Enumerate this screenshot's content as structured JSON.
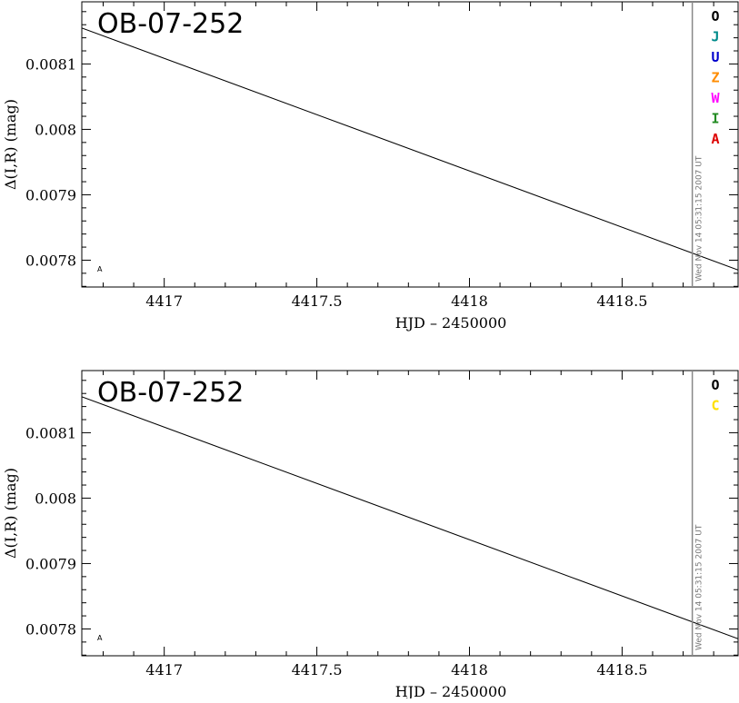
{
  "chart_data": [
    {
      "type": "line",
      "title": "OB-07-252",
      "xlabel": "HJD – 2450000",
      "ylabel": "Δ(I,R) (mag)",
      "xlim": [
        4416.73,
        4418.88
      ],
      "ylim": [
        0.007759,
        0.008195
      ],
      "x_ticks": [
        4417,
        4417.5,
        4418,
        4418.5
      ],
      "x_tick_labels": [
        "4417",
        "4417.5",
        "4418",
        "4418.5"
      ],
      "y_ticks": [
        0.0078,
        0.0079,
        0.008,
        0.0081
      ],
      "y_tick_labels": [
        "0.0078",
        "0.0079",
        "0.008",
        "0.0081"
      ],
      "series": [
        {
          "x": [
            4416.73,
            4418.88
          ],
          "y": [
            0.008155,
            0.007785
          ],
          "color": "#000000"
        }
      ],
      "vertical_marker_x": 4418.73,
      "timestamp": "Wed Nov 14 05:31:15 2007 UT",
      "corner_mark": "A",
      "legend": [
        {
          "label": "O",
          "color": "#000000"
        },
        {
          "label": "J",
          "color": "#008b8b"
        },
        {
          "label": "U",
          "color": "#0000cd"
        },
        {
          "label": "Z",
          "color": "#ff8c00"
        },
        {
          "label": "W",
          "color": "#ff00ff"
        },
        {
          "label": "I",
          "color": "#228b22"
        },
        {
          "label": "A",
          "color": "#dd0000"
        }
      ]
    },
    {
      "type": "line",
      "title": "OB-07-252",
      "xlabel": "HJD – 2450000",
      "ylabel": "Δ(I,R) (mag)",
      "xlim": [
        4416.73,
        4418.88
      ],
      "ylim": [
        0.007759,
        0.008195
      ],
      "x_ticks": [
        4417,
        4417.5,
        4418,
        4418.5
      ],
      "x_tick_labels": [
        "4417",
        "4417.5",
        "4418",
        "4418.5"
      ],
      "y_ticks": [
        0.0078,
        0.0079,
        0.008,
        0.0081
      ],
      "y_tick_labels": [
        "0.0078",
        "0.0079",
        "0.008",
        "0.0081"
      ],
      "series": [
        {
          "x": [
            4416.73,
            4418.88
          ],
          "y": [
            0.008155,
            0.007785
          ],
          "color": "#000000"
        }
      ],
      "vertical_marker_x": 4418.73,
      "timestamp": "Wed Nov 14 05:31:15 2007 UT",
      "corner_mark": "A",
      "legend": [
        {
          "label": "O",
          "color": "#000000"
        },
        {
          "label": "C",
          "color": "#ffe000"
        }
      ]
    }
  ]
}
